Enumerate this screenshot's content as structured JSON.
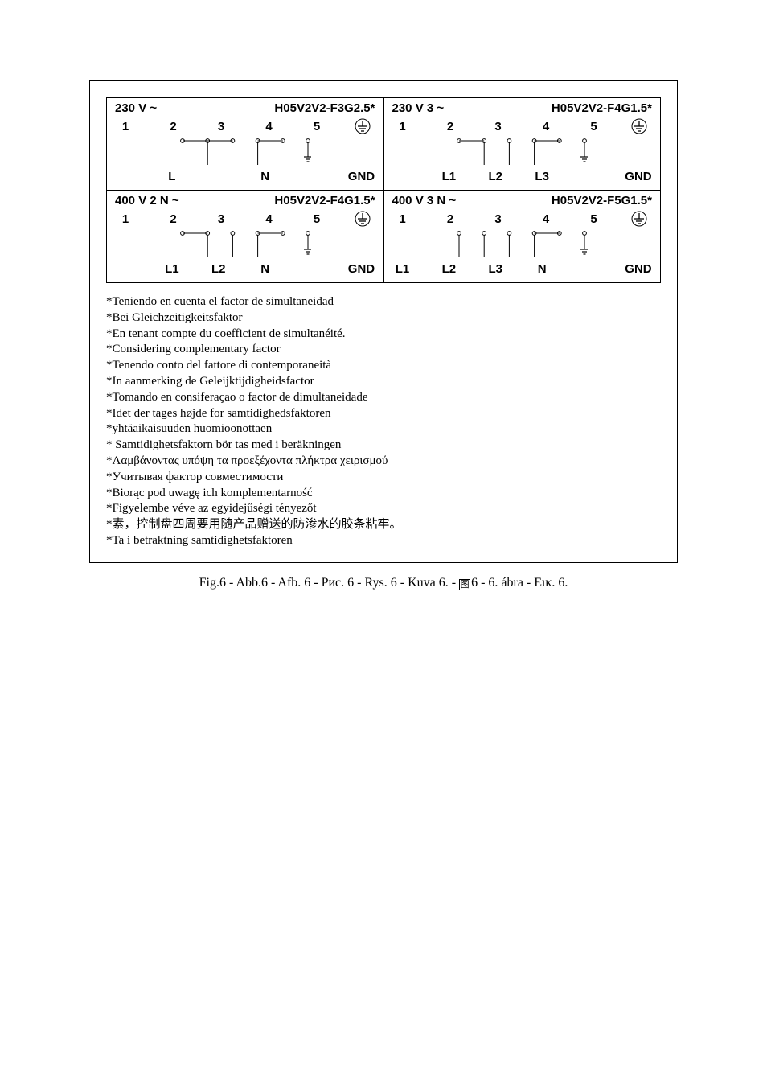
{
  "diagrams": [
    {
      "voltage": "230 V ~",
      "cable": "H05V2V2-F3G2.5*",
      "terminals": [
        "1",
        "2",
        "3",
        "4",
        "5",
        ""
      ],
      "labels": [
        "",
        "L",
        "",
        "N",
        "",
        "GND"
      ],
      "links": [
        [
          0,
          2
        ],
        [
          3,
          4
        ]
      ],
      "drops": [
        1,
        3,
        5
      ],
      "gndIndex": 5
    },
    {
      "voltage": "230 V 3 ~",
      "cable": "H05V2V2-F4G1.5*",
      "terminals": [
        "1",
        "2",
        "3",
        "4",
        "5",
        ""
      ],
      "labels": [
        "",
        "L1",
        "L2",
        "L3",
        "",
        "GND"
      ],
      "links": [
        [
          0,
          1
        ],
        [
          3,
          4
        ]
      ],
      "drops": [
        1,
        2,
        3,
        5
      ],
      "gndIndex": 5
    },
    {
      "voltage": "400 V 2 N ~",
      "cable": "H05V2V2-F4G1.5*",
      "terminals": [
        "1",
        "2",
        "3",
        "4",
        "5",
        ""
      ],
      "labels": [
        "",
        "L1",
        "L2",
        "N",
        "",
        "GND"
      ],
      "links": [
        [
          0,
          1
        ],
        [
          3,
          4
        ]
      ],
      "drops": [
        1,
        2,
        3,
        5
      ],
      "gndIndex": 5
    },
    {
      "voltage": "400 V 3 N ~",
      "cable": "H05V2V2-F5G1.5*",
      "terminals": [
        "1",
        "2",
        "3",
        "4",
        "5",
        ""
      ],
      "labels": [
        "L1",
        "L2",
        "L3",
        "N",
        "",
        "GND"
      ],
      "links": [
        [
          3,
          4
        ]
      ],
      "drops": [
        0,
        1,
        2,
        3,
        5
      ],
      "gndIndex": 5
    }
  ],
  "notes": [
    "*Teniendo en cuenta el factor de simultaneidad",
    "*Bei Gleichzeitigkeitsfaktor",
    "*En tenant compte du coefficient de simultanéité.",
    "*Considering complementary factor",
    "*Tenendo conto del fattore di contemporaneità",
    "*In aanmerking de Geleijktijdigheidsfactor",
    "*Tomando en consiferaçao o factor de dimultaneidade",
    "*Idet der tages højde for samtidighedsfaktoren",
    "*yhtäaikaisuuden huomioonottaen",
    "* Samtidighetsfaktorn bör tas med i beräkningen",
    "*Λαμβάνοντας υπόψη τα προεξέχοντα πλήκτρα χειρισμού",
    "*Учитывая фактор совместимости",
    "*Biorąc pod uwagę ich komplementarność",
    "*Figyelembe véve az egyidejűségi tényezőt",
    "*素，控制盘四周要用随产品赠送的防渗水的胶条粘牢。",
    "*Ta i betraktning samtidighetsfaktoren"
  ],
  "caption_parts": [
    "Fig.6 - Abb.6 - Afb. 6 - Рис. 6 - Rys. 6 - Kuva 6. - ",
    "6 - 6. ábra - Εικ. 6."
  ],
  "caption_box_char": "图",
  "colors": {
    "text": "#000000",
    "border": "#000000",
    "background": "#ffffff"
  }
}
